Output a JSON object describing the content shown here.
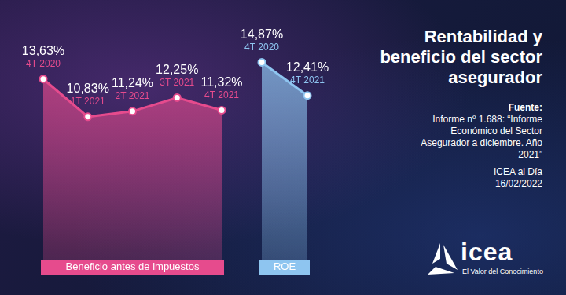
{
  "title": "Rentabilidad y beneficio del sector asegurador",
  "source": {
    "label": "Fuente:",
    "text": "Informe nº 1.688: “Informe Económico del Sector Asegurador a diciembre. Año 2021”"
  },
  "publisher": "ICEA al Día",
  "date": "16/02/2022",
  "logo": {
    "name": "icea",
    "tagline": "El Valor del Conocimiento"
  },
  "chart_data": [
    {
      "type": "line",
      "categories": [
        "4T 2020",
        "1T 2021",
        "2T 2021",
        "3T 2021",
        "4T 2021"
      ],
      "series": [
        {
          "name": "Beneficio antes de impuestos",
          "color": "#e64b8d",
          "marker": "circle",
          "values": [
            13.63,
            10.83,
            11.24,
            12.25,
            11.32
          ],
          "value_labels": [
            "13,63%",
            "10,83%",
            "11,24%",
            "12,25%",
            "11,32%"
          ]
        }
      ],
      "ylim": [
        0,
        16
      ],
      "yticks": [
        0,
        16
      ],
      "grid": false,
      "tick_labels": false,
      "data_labels": true
    },
    {
      "type": "line",
      "categories": [
        "4T 2020",
        "4T 2021"
      ],
      "series": [
        {
          "name": "ROE",
          "color": "#8ec5f0",
          "marker": "circle",
          "values": [
            14.87,
            12.41
          ],
          "value_labels": [
            "14,87%",
            "12,41%"
          ]
        }
      ],
      "ylim": [
        0,
        16
      ],
      "yticks": [
        0,
        16
      ],
      "grid": false,
      "tick_labels": false,
      "data_labels": true
    }
  ]
}
